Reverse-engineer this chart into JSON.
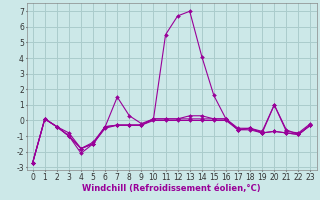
{
  "xlabel": "Windchill (Refroidissement éolien,°C)",
  "bg_color": "#cce8e8",
  "grid_color": "#aacccc",
  "line_color": "#990099",
  "xlim": [
    -0.5,
    23.5
  ],
  "ylim": [
    -3.2,
    7.5
  ],
  "xticks": [
    0,
    1,
    2,
    3,
    4,
    5,
    6,
    7,
    8,
    9,
    10,
    11,
    12,
    13,
    14,
    15,
    16,
    17,
    18,
    19,
    20,
    21,
    22,
    23
  ],
  "yticks": [
    -3,
    -2,
    -1,
    0,
    1,
    2,
    3,
    4,
    5,
    6,
    7
  ],
  "series": [
    {
      "x": [
        0,
        1,
        2,
        3,
        4,
        5,
        6,
        7,
        8,
        9,
        10,
        11,
        12,
        13,
        14,
        15,
        16,
        17,
        18,
        19,
        20,
        21,
        22,
        23
      ],
      "y": [
        -2.7,
        0.1,
        -0.4,
        -1.0,
        -1.8,
        -1.5,
        -0.4,
        1.5,
        0.3,
        -0.2,
        0.1,
        5.5,
        6.7,
        7.0,
        4.1,
        1.6,
        0.1,
        -0.6,
        -0.5,
        -0.8,
        -0.7,
        -0.8,
        -0.9,
        -0.3
      ]
    },
    {
      "x": [
        0,
        1,
        2,
        3,
        4,
        5,
        6,
        7,
        8,
        9,
        10,
        11,
        12,
        13,
        14,
        15,
        16,
        17,
        18,
        19,
        20,
        21,
        22,
        23
      ],
      "y": [
        -2.7,
        0.1,
        -0.4,
        -0.8,
        -1.8,
        -1.4,
        -0.4,
        -0.3,
        -0.3,
        -0.3,
        0.1,
        0.1,
        0.1,
        0.1,
        0.1,
        0.1,
        0.1,
        -0.5,
        -0.5,
        -0.7,
        1.0,
        -0.7,
        -0.8,
        -0.2
      ]
    },
    {
      "x": [
        0,
        1,
        2,
        3,
        4,
        5,
        6,
        7,
        8,
        9,
        10,
        11,
        12,
        13,
        14,
        15,
        16,
        17,
        18,
        19,
        20,
        21,
        22,
        23
      ],
      "y": [
        -2.7,
        0.1,
        -0.4,
        -1.0,
        -2.1,
        -1.5,
        -0.5,
        -0.3,
        -0.3,
        -0.3,
        0.0,
        0.0,
        0.0,
        0.0,
        0.0,
        0.0,
        0.0,
        -0.6,
        -0.6,
        -0.8,
        -0.7,
        -0.8,
        -0.9,
        -0.3
      ]
    },
    {
      "x": [
        0,
        1,
        2,
        3,
        4,
        5,
        6,
        7,
        8,
        9,
        10,
        11,
        12,
        13,
        14,
        15,
        16,
        17,
        18,
        19,
        20,
        21,
        22,
        23
      ],
      "y": [
        -2.7,
        0.1,
        -0.4,
        -1.0,
        -1.8,
        -1.5,
        -0.4,
        -0.3,
        -0.3,
        -0.3,
        0.1,
        0.1,
        0.1,
        0.3,
        0.3,
        0.1,
        0.1,
        -0.6,
        -0.5,
        -0.8,
        1.0,
        -0.6,
        -0.9,
        -0.3
      ]
    }
  ],
  "xlabel_fontsize": 6,
  "tick_fontsize": 5.5,
  "xlabel_color": "#990099",
  "xlabel_fontweight": "bold"
}
